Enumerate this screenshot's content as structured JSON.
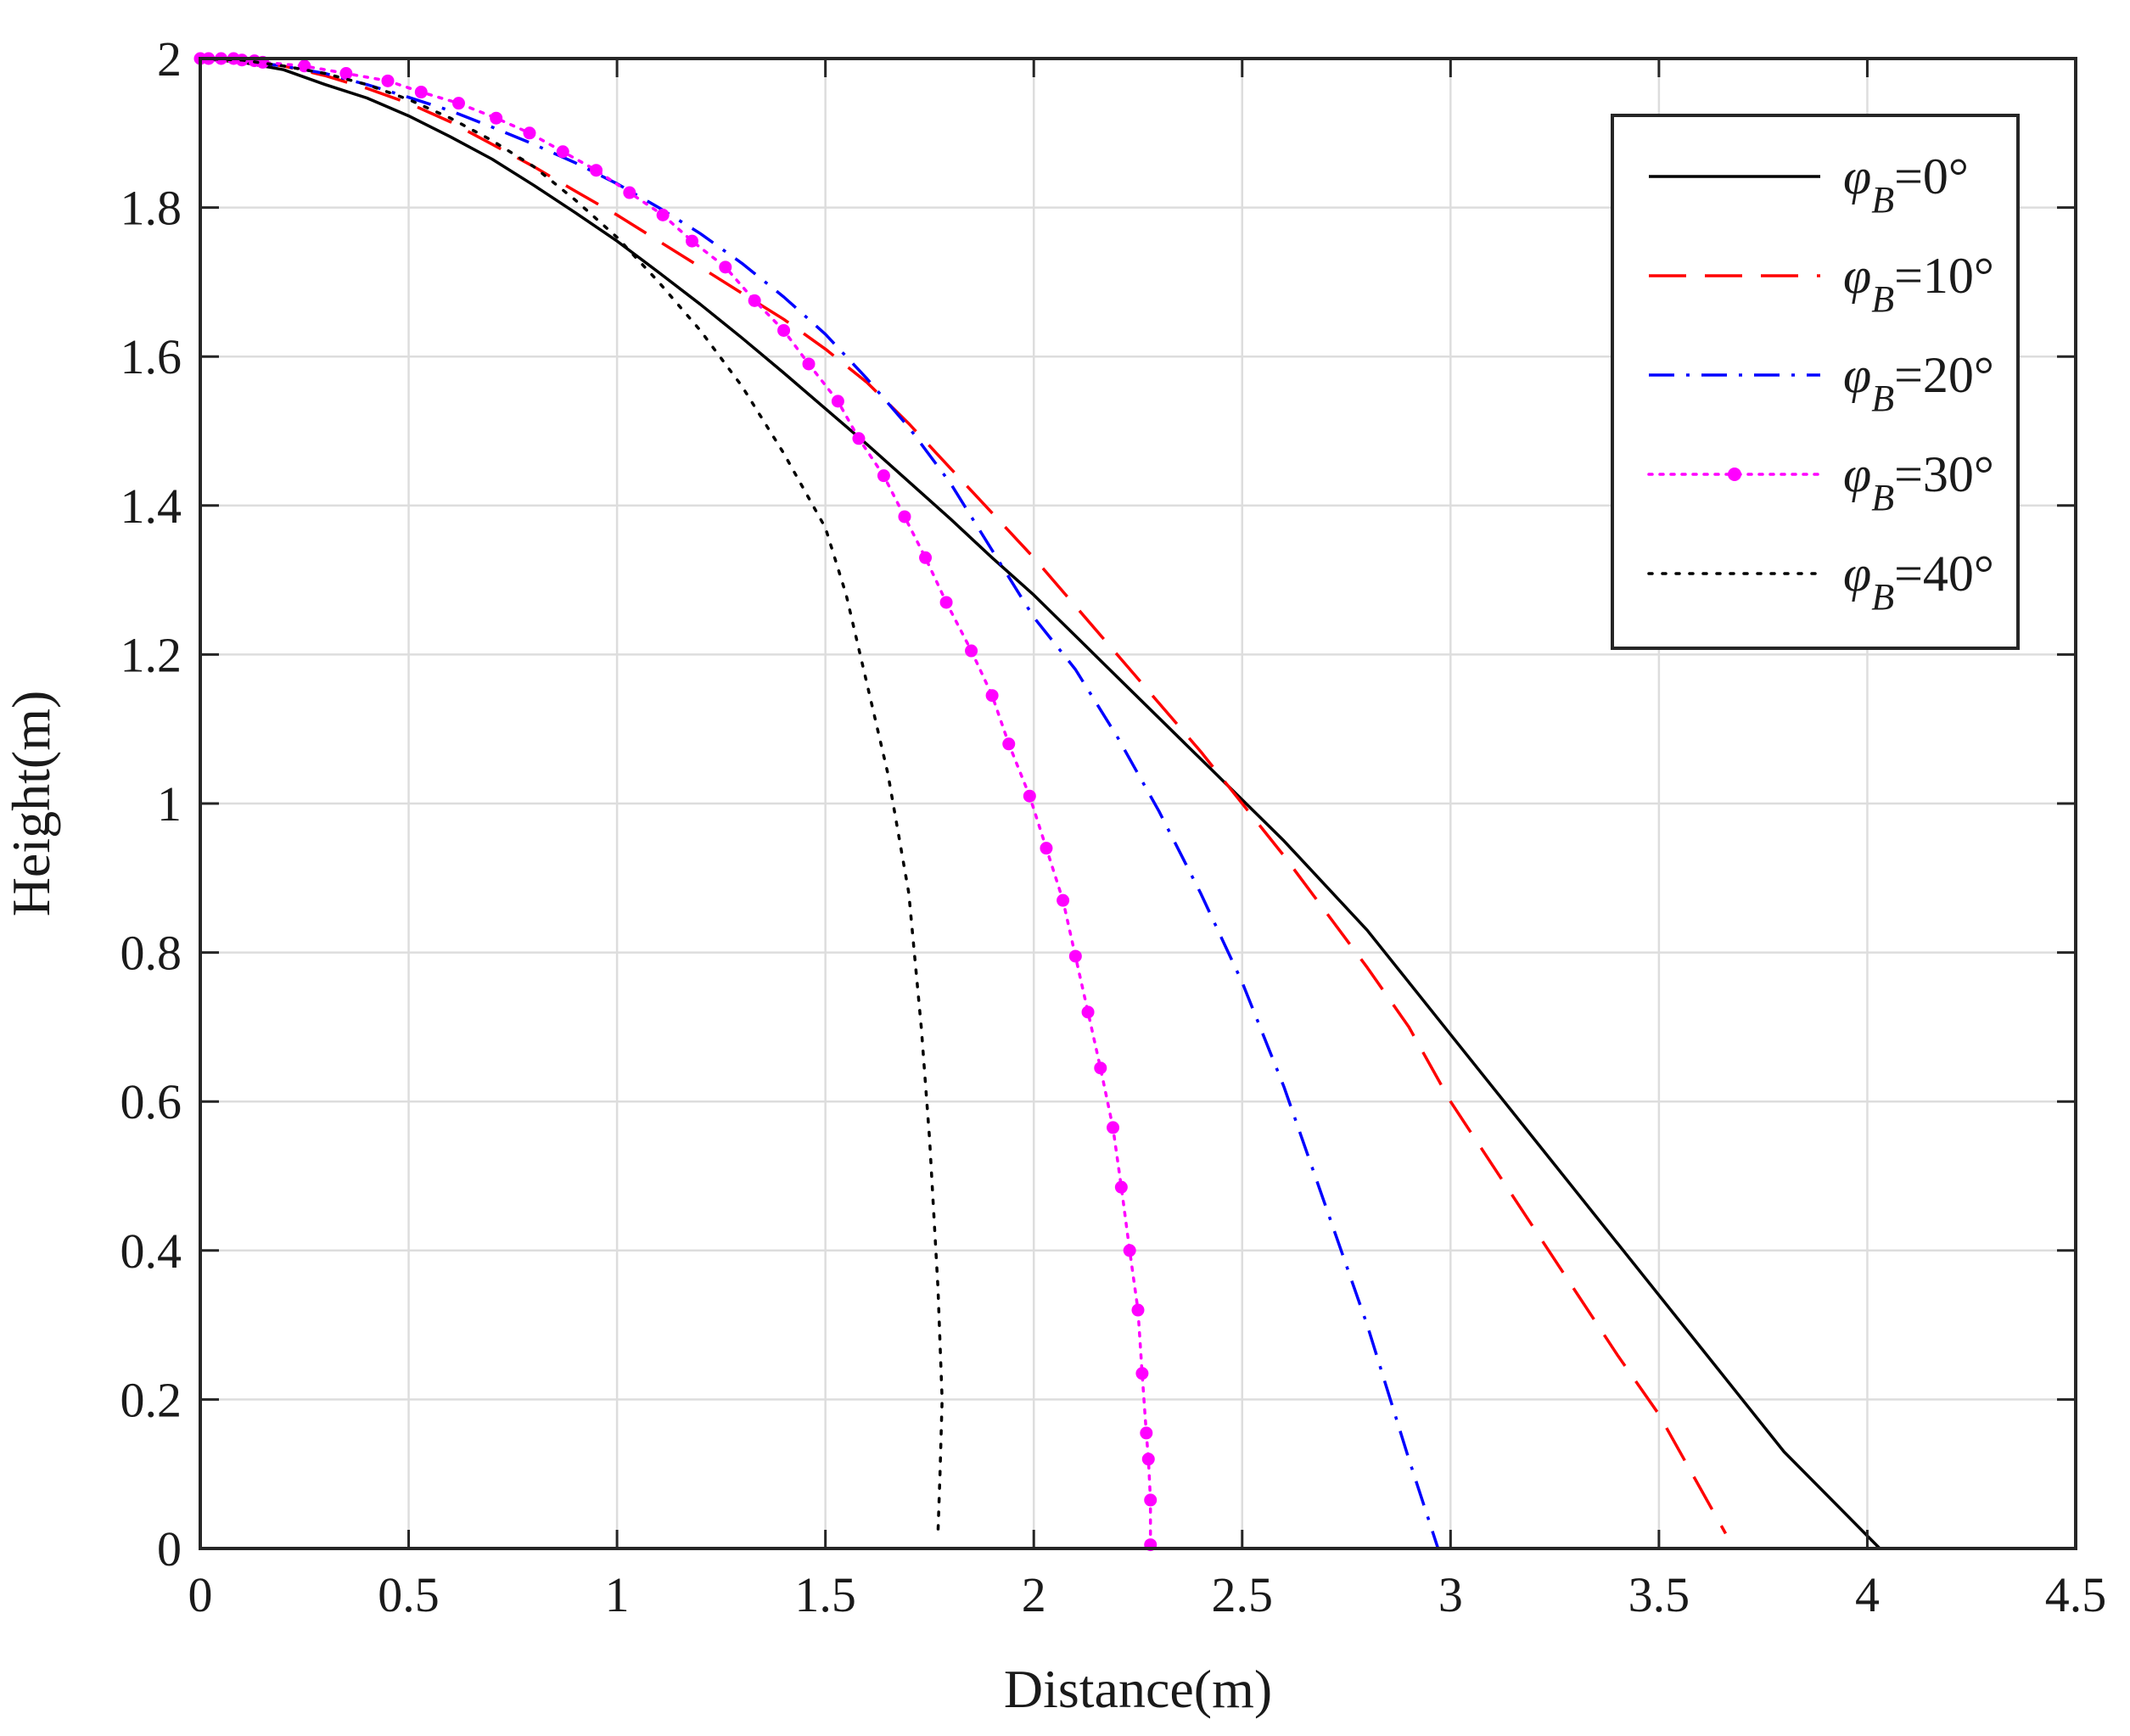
{
  "chart_data": {
    "type": "line",
    "xlabel": "Distance(m)",
    "ylabel": "Height(m)",
    "xlim": [
      0,
      4.5
    ],
    "ylim": [
      0,
      2
    ],
    "xticks": [
      0,
      0.5,
      1,
      1.5,
      2,
      2.5,
      3,
      3.5,
      4,
      4.5
    ],
    "xtick_labels": [
      "0",
      "0.5",
      "1",
      "1.5",
      "2",
      "2.5",
      "3",
      "3.5",
      "4",
      "4.5"
    ],
    "yticks": [
      0,
      0.2,
      0.4,
      0.6,
      0.8,
      1,
      1.2,
      1.4,
      1.6,
      1.8,
      2
    ],
    "ytick_labels": [
      "0",
      "0.2",
      "0.4",
      "0.6",
      "0.8",
      "1",
      "1.2",
      "1.4",
      "1.6",
      "1.8",
      "2"
    ],
    "grid": true,
    "legend_position": "top-right",
    "series": [
      {
        "name": "phi_B=0",
        "label_prefix": "φ",
        "label_sub": "B",
        "label_value": "=0°",
        "color": "#000000",
        "style": "solid",
        "x": [
          0,
          0.1,
          0.2,
          0.3,
          0.4,
          0.5,
          0.6,
          0.7,
          0.8,
          0.9,
          1.0,
          1.1,
          1.2,
          1.3,
          1.4,
          1.5,
          1.6,
          1.7,
          1.8,
          1.9,
          2.0,
          2.2,
          2.4,
          2.6,
          2.8,
          3.0,
          3.2,
          3.4,
          3.6,
          3.8,
          4.03
        ],
        "y": [
          2.0,
          1.995,
          1.985,
          1.965,
          1.947,
          1.923,
          1.895,
          1.865,
          1.83,
          1.793,
          1.755,
          1.713,
          1.67,
          1.625,
          1.578,
          1.53,
          1.482,
          1.432,
          1.382,
          1.33,
          1.28,
          1.17,
          1.06,
          0.95,
          0.83,
          0.69,
          0.55,
          0.41,
          0.27,
          0.13,
          0.0
        ]
      },
      {
        "name": "phi_B=10",
        "label_prefix": "φ",
        "label_sub": "B",
        "label_value": "=10°",
        "color": "#ff0000",
        "style": "dashed",
        "x": [
          0,
          0.1,
          0.2,
          0.3,
          0.4,
          0.5,
          0.6,
          0.7,
          0.8,
          0.9,
          1.0,
          1.1,
          1.2,
          1.3,
          1.4,
          1.5,
          1.6,
          1.7,
          1.8,
          2.0,
          2.2,
          2.4,
          2.6,
          2.8,
          2.9,
          3.0,
          3.2,
          3.4,
          3.5,
          3.66
        ],
        "y": [
          2.0,
          1.997,
          1.99,
          1.977,
          1.96,
          1.94,
          1.915,
          1.885,
          1.855,
          1.822,
          1.79,
          1.755,
          1.72,
          1.685,
          1.65,
          1.61,
          1.565,
          1.51,
          1.45,
          1.33,
          1.2,
          1.07,
          0.93,
          0.78,
          0.7,
          0.6,
          0.43,
          0.26,
          0.18,
          0.02
        ]
      },
      {
        "name": "phi_B=20",
        "label_prefix": "φ",
        "label_sub": "B",
        "label_value": "=20°",
        "color": "#0000ff",
        "style": "dashdot",
        "x": [
          0,
          0.1,
          0.2,
          0.3,
          0.4,
          0.5,
          0.6,
          0.7,
          0.8,
          0.9,
          1.0,
          1.1,
          1.2,
          1.3,
          1.4,
          1.5,
          1.6,
          1.7,
          1.8,
          1.9,
          2.0,
          2.1,
          2.2,
          2.3,
          2.4,
          2.5,
          2.6,
          2.7,
          2.8,
          2.9,
          2.97
        ],
        "y": [
          2.0,
          1.997,
          1.99,
          1.98,
          1.965,
          1.948,
          1.93,
          1.908,
          1.885,
          1.86,
          1.832,
          1.8,
          1.765,
          1.725,
          1.68,
          1.63,
          1.57,
          1.505,
          1.43,
          1.34,
          1.25,
          1.18,
          1.09,
          0.99,
          0.88,
          0.76,
          0.62,
          0.46,
          0.3,
          0.12,
          0.0
        ]
      },
      {
        "name": "phi_B=30",
        "label_prefix": "φ",
        "label_sub": "B",
        "label_value": "=30°",
        "color": "#ff00ff",
        "style": "dotted-markers",
        "x": [
          0,
          0.02,
          0.05,
          0.08,
          0.1,
          0.13,
          0.15,
          0.25,
          0.35,
          0.45,
          0.53,
          0.62,
          0.71,
          0.79,
          0.87,
          0.95,
          1.03,
          1.11,
          1.18,
          1.26,
          1.33,
          1.4,
          1.46,
          1.53,
          1.58,
          1.64,
          1.69,
          1.74,
          1.79,
          1.85,
          1.9,
          1.94,
          1.99,
          2.03,
          2.07,
          2.1,
          2.13,
          2.16,
          2.19,
          2.21,
          2.23,
          2.25,
          2.26,
          2.27,
          2.275,
          2.28,
          2.28
        ],
        "y": [
          2.0,
          2.0,
          2.0,
          2.0,
          1.998,
          1.997,
          1.995,
          1.99,
          1.98,
          1.97,
          1.955,
          1.94,
          1.92,
          1.9,
          1.875,
          1.85,
          1.82,
          1.79,
          1.755,
          1.72,
          1.675,
          1.635,
          1.59,
          1.54,
          1.49,
          1.44,
          1.385,
          1.33,
          1.27,
          1.205,
          1.145,
          1.08,
          1.01,
          0.94,
          0.87,
          0.795,
          0.72,
          0.645,
          0.565,
          0.485,
          0.4,
          0.32,
          0.235,
          0.155,
          0.12,
          0.065,
          0.005
        ]
      },
      {
        "name": "phi_B=40",
        "label_prefix": "φ",
        "label_sub": "B",
        "label_value": "=40°",
        "color": "#000000",
        "style": "dotted",
        "x": [
          0,
          0.1,
          0.2,
          0.3,
          0.4,
          0.5,
          0.6,
          0.7,
          0.8,
          0.9,
          1.0,
          1.1,
          1.2,
          1.3,
          1.4,
          1.5,
          1.55,
          1.6,
          1.65,
          1.7,
          1.73,
          1.75,
          1.77,
          1.78,
          1.775,
          1.77
        ],
        "y": [
          2.0,
          1.998,
          1.99,
          1.98,
          1.965,
          1.945,
          1.92,
          1.89,
          1.855,
          1.81,
          1.76,
          1.7,
          1.635,
          1.56,
          1.47,
          1.37,
          1.28,
          1.16,
          1.04,
          0.88,
          0.7,
          0.55,
          0.35,
          0.2,
          0.1,
          0.02
        ]
      }
    ]
  }
}
